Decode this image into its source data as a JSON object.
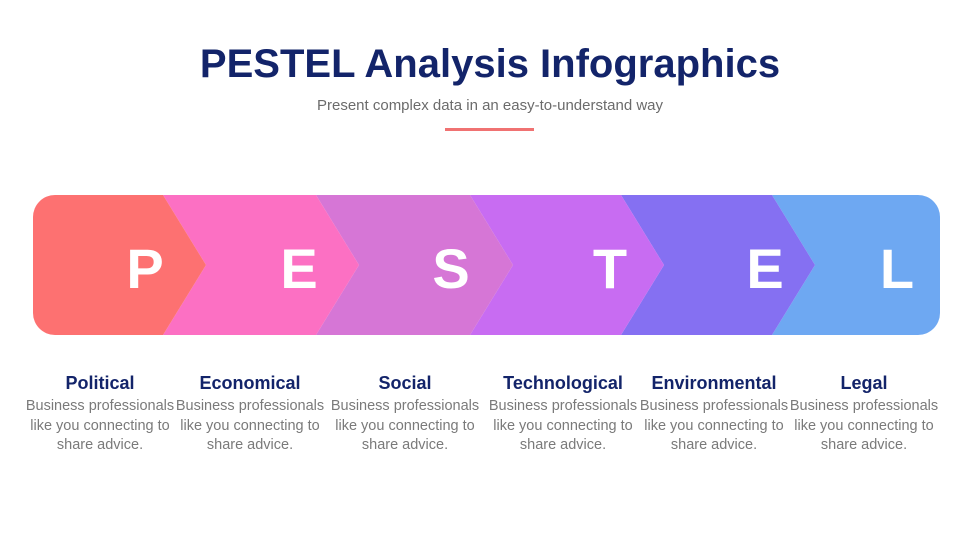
{
  "header": {
    "title": "PESTEL Analysis Infographics",
    "subtitle": "Present complex data in an easy-to-understand way",
    "accent_color": "#f07272"
  },
  "segments": [
    {
      "letter": "P",
      "label": "Political",
      "description": "Business professionals like you connecting to share advice.",
      "color": "#fd7171"
    },
    {
      "letter": "E",
      "label": "Economical",
      "description": "Business professionals like you connecting to share advice.",
      "color": "#fc70c3"
    },
    {
      "letter": "S",
      "label": "Social",
      "description": "Business professionals like you connecting to share advice.",
      "color": "#d676d6"
    },
    {
      "letter": "T",
      "label": "Technological",
      "description": "Business professionals like you connecting to share advice.",
      "color": "#c86cf2"
    },
    {
      "letter": "E",
      "label": "Environmental",
      "description": "Business professionals like you connecting to share advice.",
      "color": "#8570f2"
    },
    {
      "letter": "L",
      "label": "Legal",
      "description": "Business professionals like you connecting to share advice.",
      "color": "#6ea8f2"
    }
  ]
}
